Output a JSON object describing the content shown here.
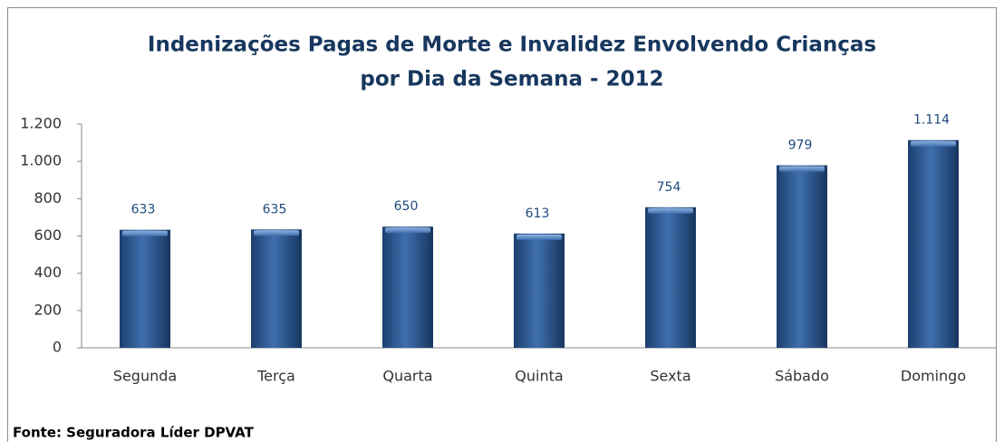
{
  "chart_data": {
    "type": "bar",
    "title": [
      "Indenizações Pagas de Morte e Invalidez Envolvendo Crianças",
      "por Dia da Semana - 2012"
    ],
    "categories": [
      "Segunda",
      "Terça",
      "Quarta",
      "Quinta",
      "Sexta",
      "Sábado",
      "Domingo"
    ],
    "values": [
      633,
      635,
      650,
      613,
      754,
      979,
      1114
    ],
    "value_labels": [
      "633",
      "635",
      "650",
      "613",
      "754",
      "979",
      "1.114"
    ],
    "color": "#2a5a96",
    "ylim": [
      0,
      1200
    ],
    "yticks": [
      0,
      200,
      400,
      600,
      800,
      {
        "value": 1000,
        "label": "1.000"
      },
      {
        "value": 1200,
        "label": "1.200"
      }
    ],
    "source": "Fonte: Seguradora Líder DPVAT"
  }
}
